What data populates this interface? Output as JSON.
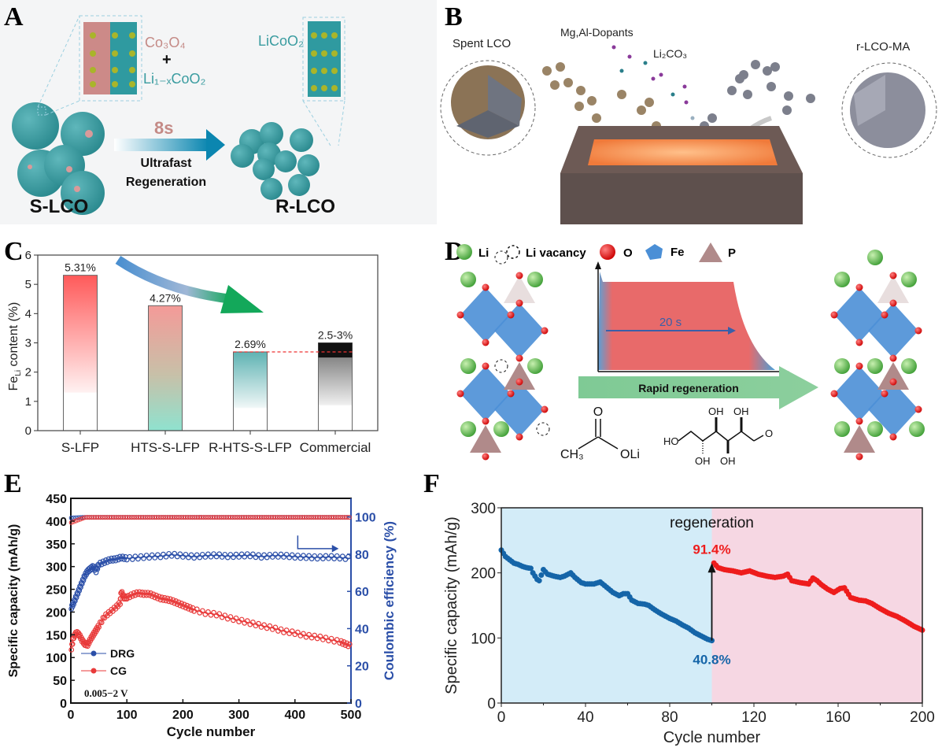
{
  "panels": {
    "A": {
      "letter": "A",
      "left_label": "S-LCO",
      "right_label": "R-LCO",
      "phase1": "Co₃O₄",
      "plus": "+",
      "phase2": "Li₁₋ₓCoO₂",
      "product_phase": "LiCoO₂",
      "time": "8s",
      "arrow_line1": "Ultrafast",
      "arrow_line2": "Regeneration",
      "colors": {
        "spinel": "#c48a86",
        "layered": "#3a9ca0",
        "arrow": "#0b86b0"
      }
    },
    "B": {
      "letter": "B",
      "spent_label": "Spent LCO",
      "dopant_label": "Mg,Al-Dopants",
      "li_source_label": "Li₂CO₃",
      "product_label": "r-LCO-MA"
    },
    "D": {
      "letter": "D",
      "legend": [
        {
          "label": "Li",
          "icon": "green-sphere"
        },
        {
          "label": "Li vacancy",
          "icon": "dashed-circle"
        },
        {
          "label": "O",
          "icon": "red-sphere"
        },
        {
          "label": "Fe",
          "icon": "blue-octahedron"
        },
        {
          "label": "P",
          "icon": "brown-tetrahedron"
        }
      ],
      "pulse_label": "20 s",
      "arrow_label": "Rapid regeneration",
      "acetate": {
        "carbonyl_o": "O",
        "methyl": "CH₃",
        "oli": "OLi"
      },
      "glucose": {
        "ho": "HO",
        "oh": "OH",
        "aldehyde_o": "O"
      }
    }
  },
  "chart_data": [
    {
      "panel": "C",
      "type": "bar",
      "ylabel_main": "Fe",
      "ylabel_sub": "Li",
      "ylabel_rest": " content (%)",
      "ylim": [
        0,
        6
      ],
      "yticks": [
        0,
        1,
        2,
        3,
        4,
        5,
        6
      ],
      "categories": [
        "S-LFP",
        "HTS-S-LFP",
        "R-HTS-S-LFP",
        "Commercial"
      ],
      "values": [
        5.31,
        4.27,
        2.69,
        3.0
      ],
      "range_low": [
        null,
        null,
        null,
        2.5
      ],
      "data_labels": [
        "5.31%",
        "4.27%",
        "2.69%",
        "2.5-3%"
      ],
      "reference_line": 2.69,
      "colors": [
        "#ff5a5a",
        "#f49a98",
        "#5fb3b3",
        "#222222"
      ],
      "grid": false
    },
    {
      "panel": "E",
      "type": "scatter",
      "xlabel": "Cycle number",
      "ylabel": "Specific capacity (mAh/g)",
      "y2label": "Coulombic efficiency (%)",
      "xlim": [
        0,
        500
      ],
      "ylim": [
        0,
        450
      ],
      "y2lim": [
        0,
        110
      ],
      "xticks": [
        0,
        100,
        200,
        300,
        400,
        500
      ],
      "yticks": [
        0,
        50,
        100,
        150,
        200,
        250,
        300,
        350,
        400,
        450
      ],
      "y2ticks": [
        0,
        20,
        40,
        60,
        80,
        100
      ],
      "annotation": "0.005−2 V",
      "legend_position": "bottom-left",
      "series": [
        {
          "name": "DRG",
          "color": "#2b4fa8",
          "axis": "capacity",
          "x": [
            1,
            5,
            10,
            15,
            20,
            25,
            30,
            35,
            40,
            45,
            50,
            60,
            70,
            80,
            90,
            100,
            120,
            140,
            160,
            180,
            200,
            220,
            240,
            260,
            280,
            300,
            320,
            340,
            360,
            380,
            400,
            420,
            440,
            460,
            480,
            500
          ],
          "y": [
            210,
            220,
            235,
            250,
            265,
            280,
            290,
            295,
            300,
            290,
            305,
            310,
            315,
            316,
            320,
            318,
            320,
            322,
            323,
            326,
            324,
            322,
            324,
            325,
            323,
            324,
            325,
            322,
            324,
            324,
            322,
            321,
            320,
            321,
            320,
            318
          ]
        },
        {
          "name": "CG",
          "color": "#e83a3a",
          "axis": "capacity",
          "x": [
            1,
            5,
            10,
            15,
            20,
            25,
            30,
            35,
            40,
            45,
            50,
            60,
            70,
            80,
            88,
            90,
            95,
            100,
            110,
            120,
            130,
            140,
            150,
            160,
            170,
            180,
            190,
            200,
            210,
            220,
            240,
            260,
            280,
            300,
            320,
            340,
            360,
            380,
            400,
            420,
            440,
            460,
            480,
            490,
            500
          ],
          "y": [
            120,
            145,
            155,
            150,
            138,
            130,
            128,
            140,
            150,
            160,
            170,
            190,
            200,
            210,
            220,
            245,
            232,
            232,
            238,
            242,
            240,
            240,
            235,
            230,
            228,
            225,
            220,
            215,
            210,
            205,
            198,
            195,
            188,
            182,
            176,
            170,
            165,
            158,
            154,
            148,
            145,
            140,
            135,
            130,
            125
          ]
        },
        {
          "name": "DRG CE",
          "color": "#2b4fa8",
          "axis": "efficiency",
          "x": [
            1,
            500
          ],
          "y": [
            99.5,
            99.8
          ]
        },
        {
          "name": "CG CE",
          "color": "#e83a3a",
          "axis": "efficiency",
          "x": [
            1,
            500
          ],
          "y": [
            97,
            99.8
          ]
        }
      ]
    },
    {
      "panel": "F",
      "type": "scatter",
      "xlabel": "Cycle number",
      "ylabel": "Specific capacity (mAh/g)",
      "xlim": [
        0,
        200
      ],
      "ylim": [
        0,
        300
      ],
      "xticks": [
        0,
        40,
        80,
        120,
        160,
        200
      ],
      "yticks": [
        0,
        100,
        200,
        300
      ],
      "regions": [
        {
          "from": 0,
          "to": 100,
          "color": "#d3ecf8"
        },
        {
          "from": 100,
          "to": 200,
          "color": "#f6d7e3"
        }
      ],
      "region_label": "regeneration",
      "annotations": [
        {
          "text": "91.4%",
          "x": 100,
          "y": 215,
          "color": "#ee1c1c"
        },
        {
          "text": "40.8%",
          "x": 100,
          "y": 96,
          "color": "#1565a8"
        }
      ],
      "series": [
        {
          "color": "#1565a8",
          "x": [
            0,
            2,
            4,
            6,
            8,
            10,
            12,
            14,
            15,
            17,
            18,
            20,
            22,
            25,
            28,
            30,
            33,
            35,
            38,
            40,
            44,
            47,
            50,
            53,
            56,
            58,
            60,
            62,
            65,
            68,
            70,
            73,
            76,
            80,
            83,
            86,
            89,
            92,
            95,
            98,
            100
          ],
          "y": [
            235,
            225,
            220,
            215,
            213,
            210,
            208,
            207,
            200,
            190,
            188,
            205,
            198,
            195,
            193,
            195,
            200,
            193,
            185,
            183,
            183,
            186,
            178,
            170,
            165,
            168,
            168,
            158,
            153,
            152,
            150,
            143,
            137,
            130,
            126,
            120,
            115,
            108,
            103,
            98,
            96
          ]
        },
        {
          "color": "#ee1c1c",
          "x": [
            101,
            103,
            106,
            110,
            114,
            118,
            122,
            126,
            130,
            134,
            136,
            138,
            142,
            146,
            148,
            150,
            152,
            155,
            158,
            161,
            163,
            166,
            170,
            173,
            176,
            180,
            184,
            188,
            192,
            196,
            200
          ],
          "y": [
            215,
            208,
            205,
            203,
            200,
            203,
            198,
            195,
            193,
            195,
            198,
            188,
            185,
            183,
            192,
            188,
            182,
            175,
            170,
            176,
            177,
            162,
            158,
            157,
            153,
            145,
            138,
            133,
            126,
            118,
            112
          ]
        }
      ],
      "arrow": {
        "x": 100,
        "from": 96,
        "to": 215
      }
    }
  ]
}
